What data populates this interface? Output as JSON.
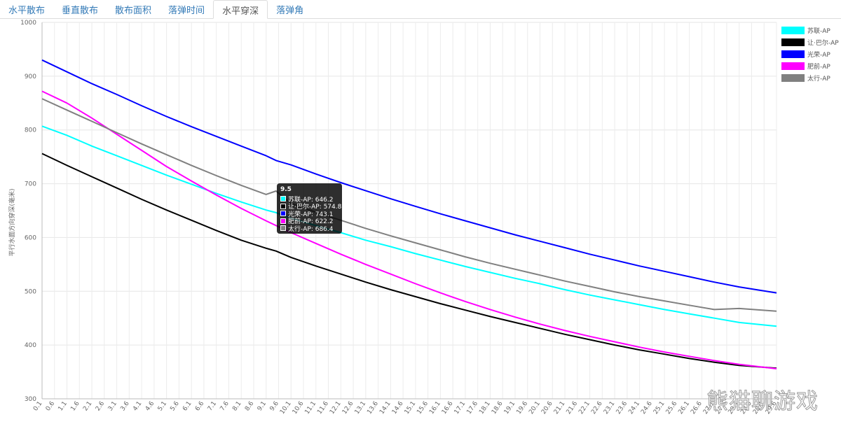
{
  "tabs": [
    {
      "label": "水平散布",
      "active": false
    },
    {
      "label": "垂直散布",
      "active": false
    },
    {
      "label": "散布面积",
      "active": false
    },
    {
      "label": "落弹时间",
      "active": false
    },
    {
      "label": "水平穿深",
      "active": true
    },
    {
      "label": "落弹角",
      "active": false
    }
  ],
  "tooltip": {
    "title": "9.5",
    "rows": [
      {
        "text": "苏联-AP: 646.2",
        "color": "#00ffff"
      },
      {
        "text": "让·巴尔-AP: 574.8",
        "color": "#000000"
      },
      {
        "text": "光荣-AP: 743.1",
        "color": "#0000ff"
      },
      {
        "text": "肥前-AP: 622.2",
        "color": "#ff00ff"
      },
      {
        "text": "太行-AP: 686.4",
        "color": "#808080"
      }
    ]
  },
  "watermark": "熊猫聊游戏",
  "chart_data": {
    "type": "line",
    "ylabel": "平行水面方向穿深(毫米)",
    "ylim": [
      300,
      1000
    ],
    "yticks": [
      300,
      400,
      500,
      600,
      700,
      800,
      900,
      1000
    ],
    "xlim": [
      0.1,
      29.6
    ],
    "x_tick_labels": [
      "0.1",
      "0.6",
      "1.1",
      "1.6",
      "2.1",
      "2.6",
      "3.1",
      "3.6",
      "4.1",
      "4.6",
      "5.1",
      "5.6",
      "6.1",
      "6.6",
      "7.1",
      "7.6",
      "8.1",
      "8.6",
      "9.1",
      "9.6",
      "10.1",
      "10.6",
      "11.1",
      "11.6",
      "12.1",
      "12.6",
      "13.1",
      "13.6",
      "14.1",
      "14.6",
      "15.1",
      "15.6",
      "16.1",
      "16.6",
      "17.1",
      "17.6",
      "18.1",
      "18.6",
      "19.1",
      "19.6",
      "20.1",
      "20.6",
      "21.1",
      "21.6",
      "22.1",
      "22.6",
      "23.1",
      "23.6",
      "24.1",
      "24.6",
      "25.1",
      "25.6",
      "26.1",
      "26.6",
      "27.1",
      "27.6",
      "28.1",
      "28.6",
      "29.1",
      "29.6"
    ],
    "grid": true,
    "legend_position": "top-right",
    "x": [
      0.1,
      1.1,
      2.1,
      3.1,
      4.1,
      5.1,
      6.1,
      7.1,
      8.1,
      9.1,
      9.5,
      10.1,
      11.1,
      12.1,
      13.1,
      14.1,
      15.1,
      16.1,
      17.1,
      18.1,
      19.1,
      20.1,
      21.1,
      22.1,
      23.1,
      24.1,
      25.1,
      26.1,
      27.1,
      28.1,
      29.6
    ],
    "series": [
      {
        "name": "苏联-AP",
        "color": "#00ffff",
        "values": [
          807,
          790,
          770,
          752,
          734,
          716,
          699,
          682,
          666,
          651,
          646.2,
          636,
          622,
          609,
          595,
          583,
          570,
          558,
          546,
          535,
          524,
          514,
          503,
          493,
          484,
          475,
          466,
          458,
          450,
          442,
          435
        ]
      },
      {
        "name": "让·巴尔-AP",
        "color": "#000000",
        "values": [
          756,
          734,
          713,
          692,
          671,
          651,
          632,
          613,
          595,
          580,
          574.8,
          563,
          547,
          532,
          517,
          503,
          490,
          477,
          465,
          453,
          442,
          431,
          420,
          410,
          400,
          391,
          383,
          375,
          368,
          362,
          357
        ]
      },
      {
        "name": "光荣-AP",
        "color": "#0000ff",
        "values": [
          930,
          908,
          886,
          866,
          845,
          825,
          806,
          788,
          770,
          752,
          743.1,
          735,
          718,
          702,
          687,
          672,
          658,
          644,
          631,
          618,
          605,
          593,
          581,
          569,
          558,
          547,
          537,
          527,
          517,
          508,
          497
        ]
      },
      {
        "name": "肥前-AP",
        "color": "#ff00ff",
        "values": [
          872,
          850,
          822,
          792,
          762,
          732,
          705,
          679,
          654,
          631,
          622.2,
          609,
          589,
          569,
          550,
          532,
          514,
          497,
          481,
          466,
          452,
          439,
          427,
          416,
          406,
          396,
          387,
          379,
          371,
          364,
          356
        ]
      },
      {
        "name": "太行-AP",
        "color": "#808080",
        "values": [
          858,
          837,
          816,
          795,
          774,
          754,
          734,
          715,
          697,
          680,
          686.4,
          663,
          647,
          632,
          617,
          603,
          590,
          577,
          564,
          552,
          541,
          530,
          519,
          509,
          499,
          490,
          482,
          474,
          466,
          468,
          463
        ]
      }
    ]
  }
}
